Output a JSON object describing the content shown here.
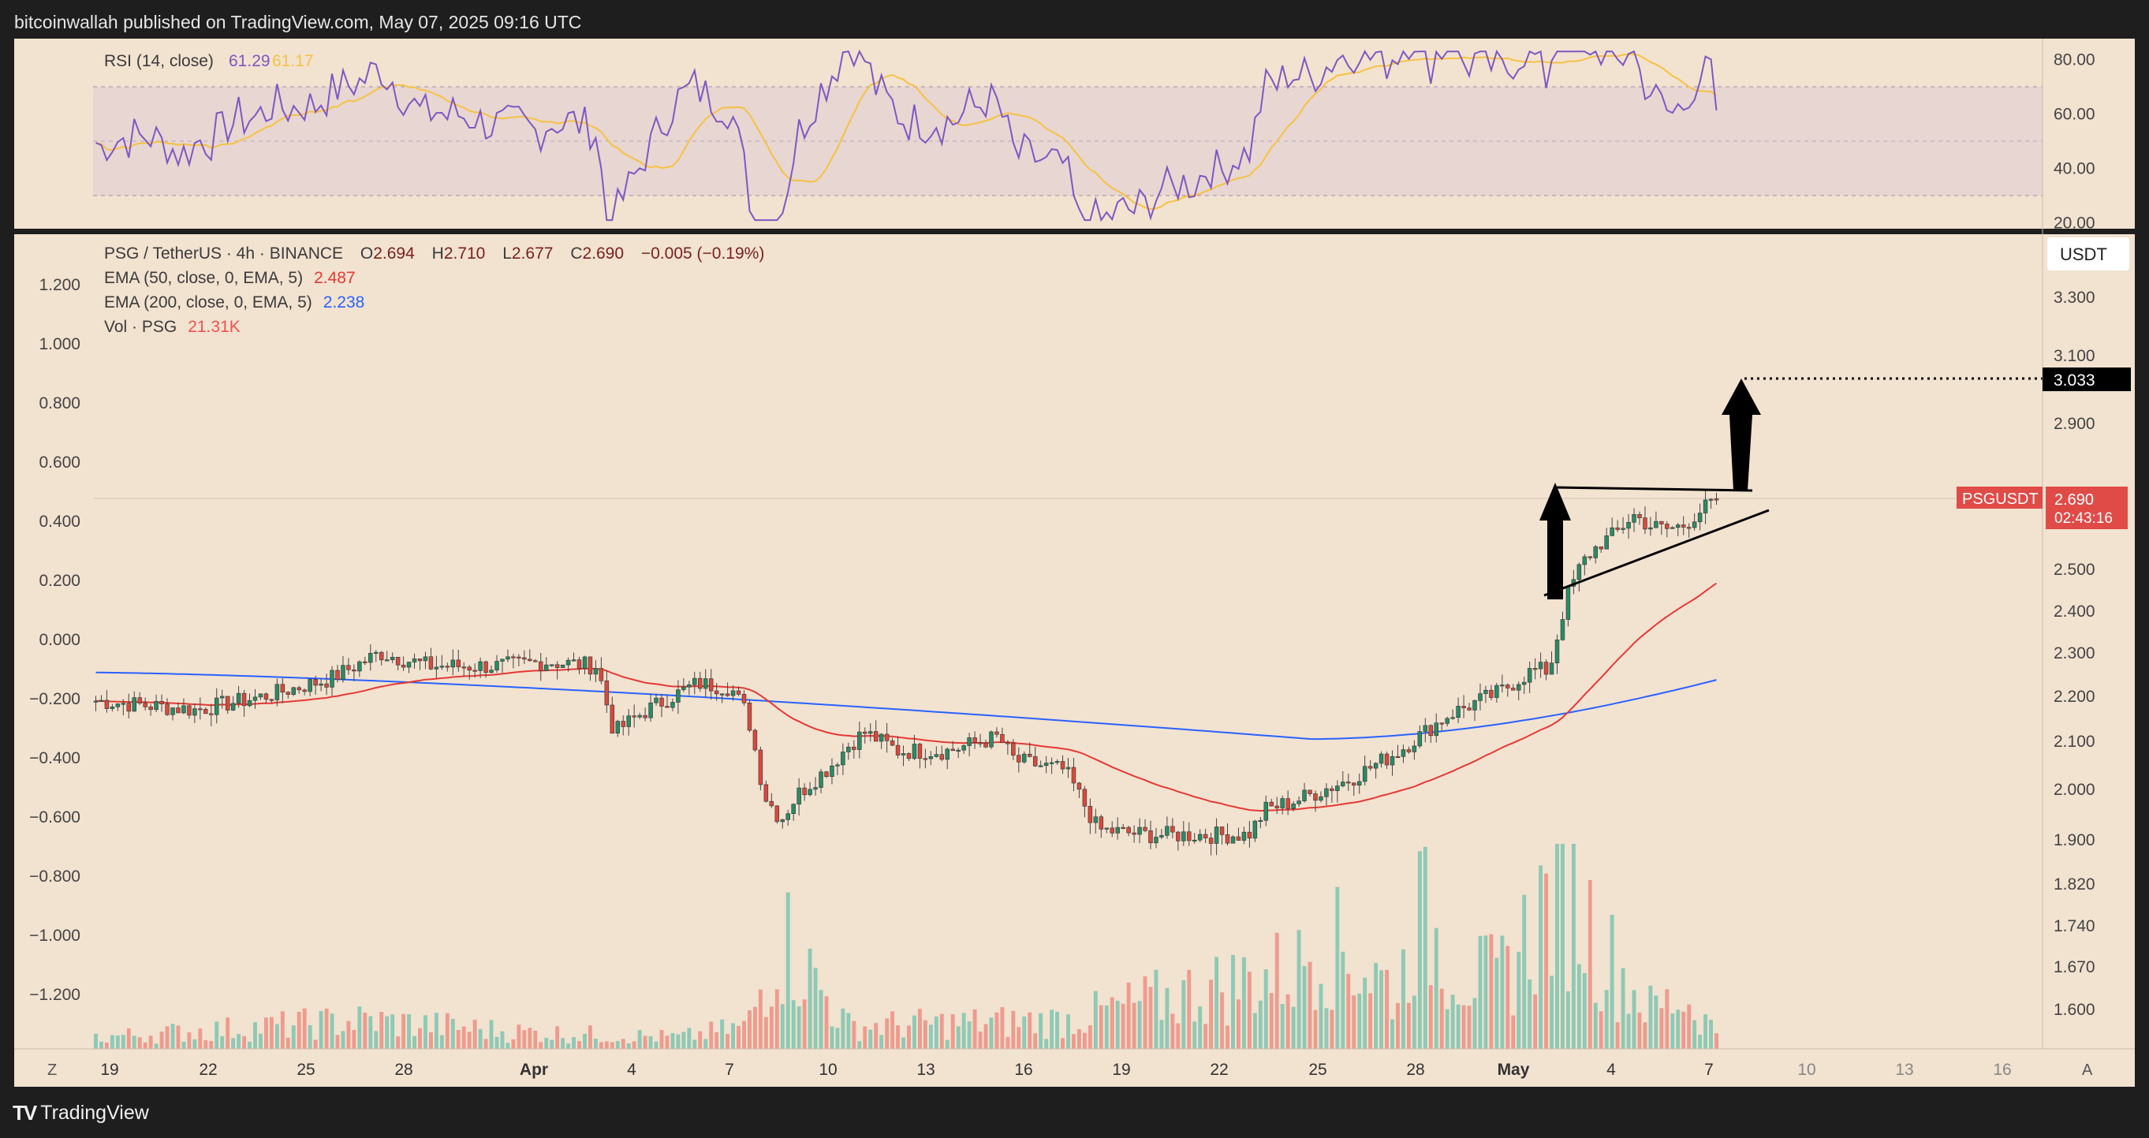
{
  "header": {
    "publish_line": "bitcoinwallah published on TradingView.com, May 07, 2025 09:16 UTC"
  },
  "footer": {
    "brand": "TradingView",
    "brand_mark": "TV",
    "left_button": "Z",
    "right_button": "A"
  },
  "rsi": {
    "title": "RSI (14, close)",
    "rsi_value": "61.29",
    "ma_value": "61.17",
    "axis_labels": [
      "80.00",
      "60.00",
      "40.00",
      "20.00"
    ],
    "colors": {
      "rsi": "#7e57c2",
      "ma": "#f5c242"
    }
  },
  "legend": {
    "symbol": "PSG / TetherUS · 4h · BINANCE",
    "o_label": "O",
    "o": "2.694",
    "h_label": "H",
    "h": "2.710",
    "l_label": "L",
    "l": "2.677",
    "c_label": "C",
    "c": "2.690",
    "change": "−0.005 (−0.19%)",
    "ema50_label": "EMA (50, close, 0, EMA, 5)",
    "ema50_value": "2.487",
    "ema200_label": "EMA (200, close, 0, EMA, 5)",
    "ema200_value": "2.238",
    "vol_label": "Vol · PSG",
    "vol_value": "21.31K"
  },
  "left_axis_labels": [
    "1.200",
    "1.000",
    "0.800",
    "0.600",
    "0.400",
    "0.200",
    "0.000",
    "−0.200",
    "−0.400",
    "−0.600",
    "−0.800",
    "−1.000",
    "−1.200"
  ],
  "right_axis": {
    "currency": "USDT",
    "labels": [
      "3.300",
      "3.100",
      "2.900",
      "2.500",
      "2.400",
      "2.300",
      "2.200",
      "2.100",
      "2.000",
      "1.900",
      "1.820",
      "1.740",
      "1.670",
      "1.600"
    ],
    "target_value": "3.033",
    "ticker": "PSGUSDT",
    "last_price": "2.690",
    "countdown": "02:43:16"
  },
  "x_axis_labels": [
    "19",
    "22",
    "25",
    "28",
    "Apr",
    "4",
    "7",
    "10",
    "13",
    "16",
    "19",
    "22",
    "25",
    "28",
    "May",
    "4",
    "7",
    "10",
    "13",
    "16"
  ],
  "colors": {
    "background": "#f2e2d0",
    "rsi_band": "#e5d4d1",
    "up": "#26a69a",
    "down": "#ef5350",
    "ema50": "#e53935",
    "ema200": "#2962ff",
    "frame": "#1e1e1e"
  },
  "chart_data": {
    "type": "candlestick",
    "symbol": "PSG / TetherUS",
    "interval": "4h",
    "x_labels": [
      "19",
      "22",
      "25",
      "28",
      "Apr",
      "4",
      "7",
      "10",
      "13",
      "16",
      "19",
      "22",
      "25",
      "28",
      "May",
      "4",
      "7",
      "10",
      "13",
      "16"
    ],
    "close_path": [
      [
        0,
        2.19
      ],
      [
        6,
        2.17
      ],
      [
        10,
        2.2
      ],
      [
        14,
        2.24
      ],
      [
        17,
        2.3
      ],
      [
        20,
        2.27
      ],
      [
        24,
        2.27
      ],
      [
        27,
        2.28
      ],
      [
        30,
        2.27
      ],
      [
        31,
        2.12
      ],
      [
        33,
        2.17
      ],
      [
        36,
        2.23
      ],
      [
        38,
        2.22
      ],
      [
        39,
        2.16
      ],
      [
        40,
        1.99
      ],
      [
        41,
        1.94
      ],
      [
        42,
        1.99
      ],
      [
        44,
        2.05
      ],
      [
        45,
        2.09
      ],
      [
        46,
        2.12
      ],
      [
        48,
        2.08
      ],
      [
        51,
        2.08
      ],
      [
        54,
        2.11
      ],
      [
        55,
        2.06
      ],
      [
        58,
        2.04
      ],
      [
        59,
        1.98
      ],
      [
        60,
        1.92
      ],
      [
        63,
        1.91
      ],
      [
        66,
        1.91
      ],
      [
        69,
        1.91
      ],
      [
        70,
        1.96
      ],
      [
        72,
        1.98
      ],
      [
        75,
        2.02
      ],
      [
        78,
        2.08
      ],
      [
        81,
        2.16
      ],
      [
        84,
        2.21
      ],
      [
        86,
        2.26
      ],
      [
        87,
        2.26
      ],
      [
        88,
        2.43
      ],
      [
        89,
        2.52
      ],
      [
        90,
        2.57
      ],
      [
        91,
        2.6
      ],
      [
        92,
        2.65
      ],
      [
        93,
        2.62
      ],
      [
        94,
        2.61
      ],
      [
        95,
        2.62
      ],
      [
        96,
        2.66
      ],
      [
        97,
        2.69
      ]
    ],
    "volume_path": [
      [
        0,
        2
      ],
      [
        16,
        5
      ],
      [
        21,
        4
      ],
      [
        25,
        3
      ],
      [
        35,
        2
      ],
      [
        39,
        4
      ],
      [
        41,
        20
      ],
      [
        45,
        4
      ],
      [
        58,
        5
      ],
      [
        72,
        14
      ],
      [
        73,
        20
      ],
      [
        78,
        10
      ],
      [
        79,
        24
      ],
      [
        82,
        13
      ],
      [
        84,
        12
      ],
      [
        88,
        31
      ],
      [
        90,
        18
      ],
      [
        93,
        7
      ],
      [
        95,
        9
      ],
      [
        97,
        3
      ]
    ],
    "volume_legend": "21.31K",
    "ema50": {
      "label": "EMA (50, close, 0, EMA, 5)",
      "last": 2.487
    },
    "ema200": {
      "label": "EMA (200, close, 0, EMA, 5)",
      "last": 2.238
    },
    "ohlc_last": {
      "open": 2.694,
      "high": 2.71,
      "low": 2.677,
      "close": 2.69,
      "change": -0.005,
      "change_pct": -0.19
    },
    "rsi": {
      "length": 14,
      "last": 61.29,
      "ma_last": 61.17,
      "ylim": [
        20,
        80
      ]
    },
    "annotations": {
      "pennant_top": 2.715,
      "breakout_target": 3.033,
      "last_price": 2.69
    },
    "ylim": [
      1.55,
      3.4
    ]
  }
}
